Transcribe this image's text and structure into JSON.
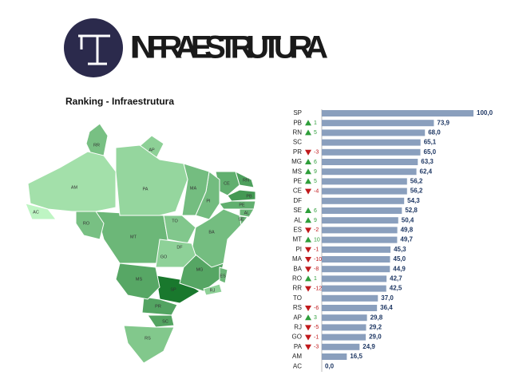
{
  "header": {
    "title": "INFRAESTRUTURA"
  },
  "chart_data": {
    "type": "bar",
    "orientation": "horizontal",
    "title": "Ranking - Infraestrutura",
    "color": "#8a9fbd",
    "categories": [
      "SP",
      "PB",
      "RN",
      "SC",
      "PR",
      "MG",
      "MS",
      "PE",
      "CE",
      "DF",
      "SE",
      "AL",
      "ES",
      "MT",
      "PI",
      "MA",
      "BA",
      "RO",
      "RR",
      "TO",
      "RS",
      "AP",
      "RJ",
      "GO",
      "PA",
      "AM",
      "AC"
    ],
    "values": [
      100.0,
      73.9,
      68.0,
      65.1,
      65.0,
      63.3,
      62.4,
      56.2,
      56.2,
      54.3,
      52.8,
      50.4,
      49.8,
      49.7,
      45.3,
      45.0,
      44.9,
      42.7,
      42.5,
      37.0,
      36.4,
      29.8,
      29.2,
      29.0,
      24.9,
      16.5,
      0.0
    ],
    "value_labels": [
      "100,0",
      "73,9",
      "68,0",
      "65,1",
      "65,0",
      "63,3",
      "62,4",
      "56,2",
      "56,2",
      "54,3",
      "52,8",
      "50,4",
      "49,8",
      "49,7",
      "45,3",
      "45,0",
      "44,9",
      "42,7",
      "42,5",
      "37,0",
      "36,4",
      "29,8",
      "29,2",
      "29,0",
      "24,9",
      "16,5",
      "0,0"
    ],
    "rank_change": [
      null,
      1,
      5,
      null,
      -3,
      6,
      9,
      5,
      -4,
      null,
      6,
      9,
      -2,
      10,
      -1,
      -10,
      -8,
      1,
      -12,
      null,
      -6,
      3,
      -5,
      -1,
      -3,
      null,
      null
    ]
  }
}
